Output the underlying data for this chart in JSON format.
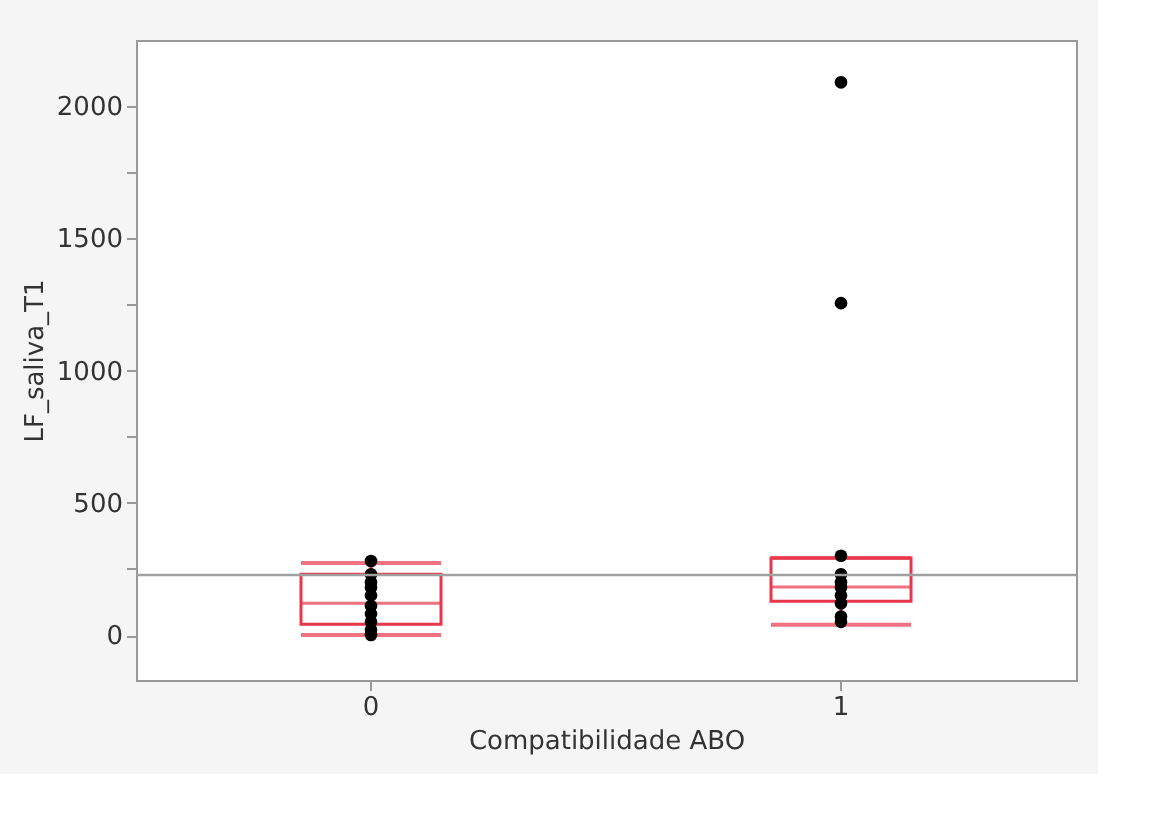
{
  "chart_data": {
    "type": "box",
    "xlabel": "Compatibilidade ABO",
    "ylabel": "LF_saliva_T1",
    "categories": [
      "0",
      "1"
    ],
    "boxes": [
      {
        "low": 0,
        "q1": 41,
        "median": 120,
        "q3": 230,
        "high": 272
      },
      {
        "low": 39,
        "q1": 128,
        "median": 182,
        "q3": 291,
        "high": 291
      }
    ],
    "color": "#e8364a",
    "series": [
      {
        "type": "scatter",
        "color": "#000000",
        "x": [
          "0",
          "0",
          "0",
          "0",
          "0",
          "0",
          "0",
          "0",
          "0",
          "0",
          "0",
          "1",
          "1",
          "1",
          "1",
          "1",
          "1",
          "1",
          "1",
          "1",
          "1"
        ],
        "values": [
          0,
          20,
          50,
          80,
          110,
          150,
          180,
          200,
          230,
          null,
          280,
          50,
          70,
          120,
          150,
          180,
          200,
          230,
          300,
          1255,
          2090
        ]
      }
    ],
    "ylim": [
      -170,
      2250
    ],
    "yticks": [
      0,
      {
        "value": 250,
        "label": null
      },
      500,
      {
        "value": 750,
        "label": null
      },
      1000,
      {
        "value": 1250,
        "label": null
      },
      1500,
      {
        "value": 1750,
        "label": null
      },
      2000
    ],
    "ref_lines": [
      {
        "axis": "y",
        "value": 227,
        "color": "#a0a0a0"
      }
    ],
    "grid": false
  }
}
